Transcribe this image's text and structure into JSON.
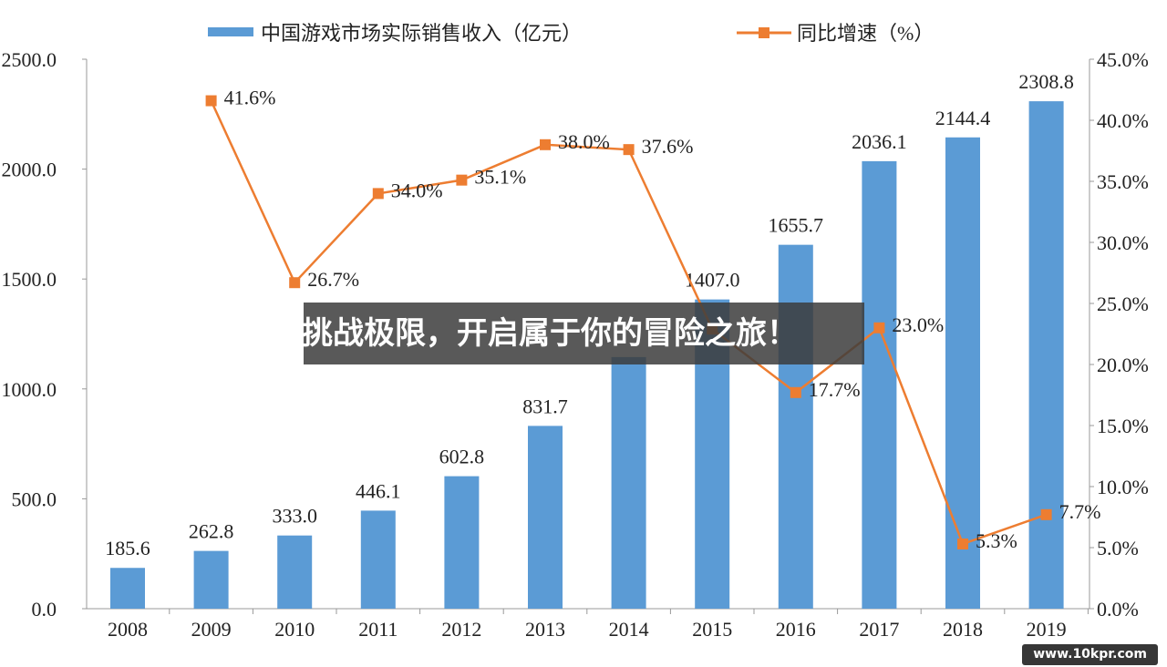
{
  "chart_data": {
    "type": "bar+line",
    "categories": [
      "2008",
      "2009",
      "2010",
      "2011",
      "2012",
      "2013",
      "2014",
      "2015",
      "2016",
      "2017",
      "2018",
      "2019"
    ],
    "series": [
      {
        "name": "中国游戏市场实际销售收入（亿元）",
        "type": "bar",
        "axis": "left",
        "color": "#5b9bd5",
        "values": [
          185.6,
          262.8,
          333.0,
          446.1,
          602.8,
          831.7,
          1144.8,
          1407.0,
          1655.7,
          2036.1,
          2144.4,
          2308.8
        ],
        "labels": [
          "185.6",
          "262.8",
          "333.0",
          "446.1",
          "602.8",
          "831.7",
          "",
          "1407.0",
          "1655.7",
          "2036.1",
          "2144.4",
          "2308.8"
        ]
      },
      {
        "name": "同比增速（%）",
        "type": "line",
        "axis": "right",
        "color": "#ed7d31",
        "values": [
          null,
          41.6,
          26.7,
          34.0,
          35.1,
          38.0,
          37.6,
          22.9,
          17.7,
          23.0,
          5.3,
          7.7
        ],
        "labels": [
          "",
          "41.6%",
          "26.7%",
          "34.0%",
          "35.1%",
          "38.0%",
          "37.6%",
          "",
          "17.7%",
          "23.0%",
          "5.3%",
          "7.7%"
        ]
      }
    ],
    "left_axis": {
      "ylim": [
        0,
        2500
      ],
      "ticks": [
        "0.0",
        "500.0",
        "1000.0",
        "1500.0",
        "2000.0",
        "2500.0"
      ]
    },
    "right_axis": {
      "ylim": [
        0,
        45
      ],
      "ticks": [
        "0.0%",
        "5.0%",
        "10.0%",
        "15.0%",
        "20.0%",
        "25.0%",
        "30.0%",
        "35.0%",
        "40.0%",
        "45.0%"
      ]
    },
    "legend": "top",
    "grid": false
  },
  "overlay": {
    "banner": "挑战极限，开启属于你的冒险之旅！",
    "watermark": "www.10kpr.com"
  }
}
